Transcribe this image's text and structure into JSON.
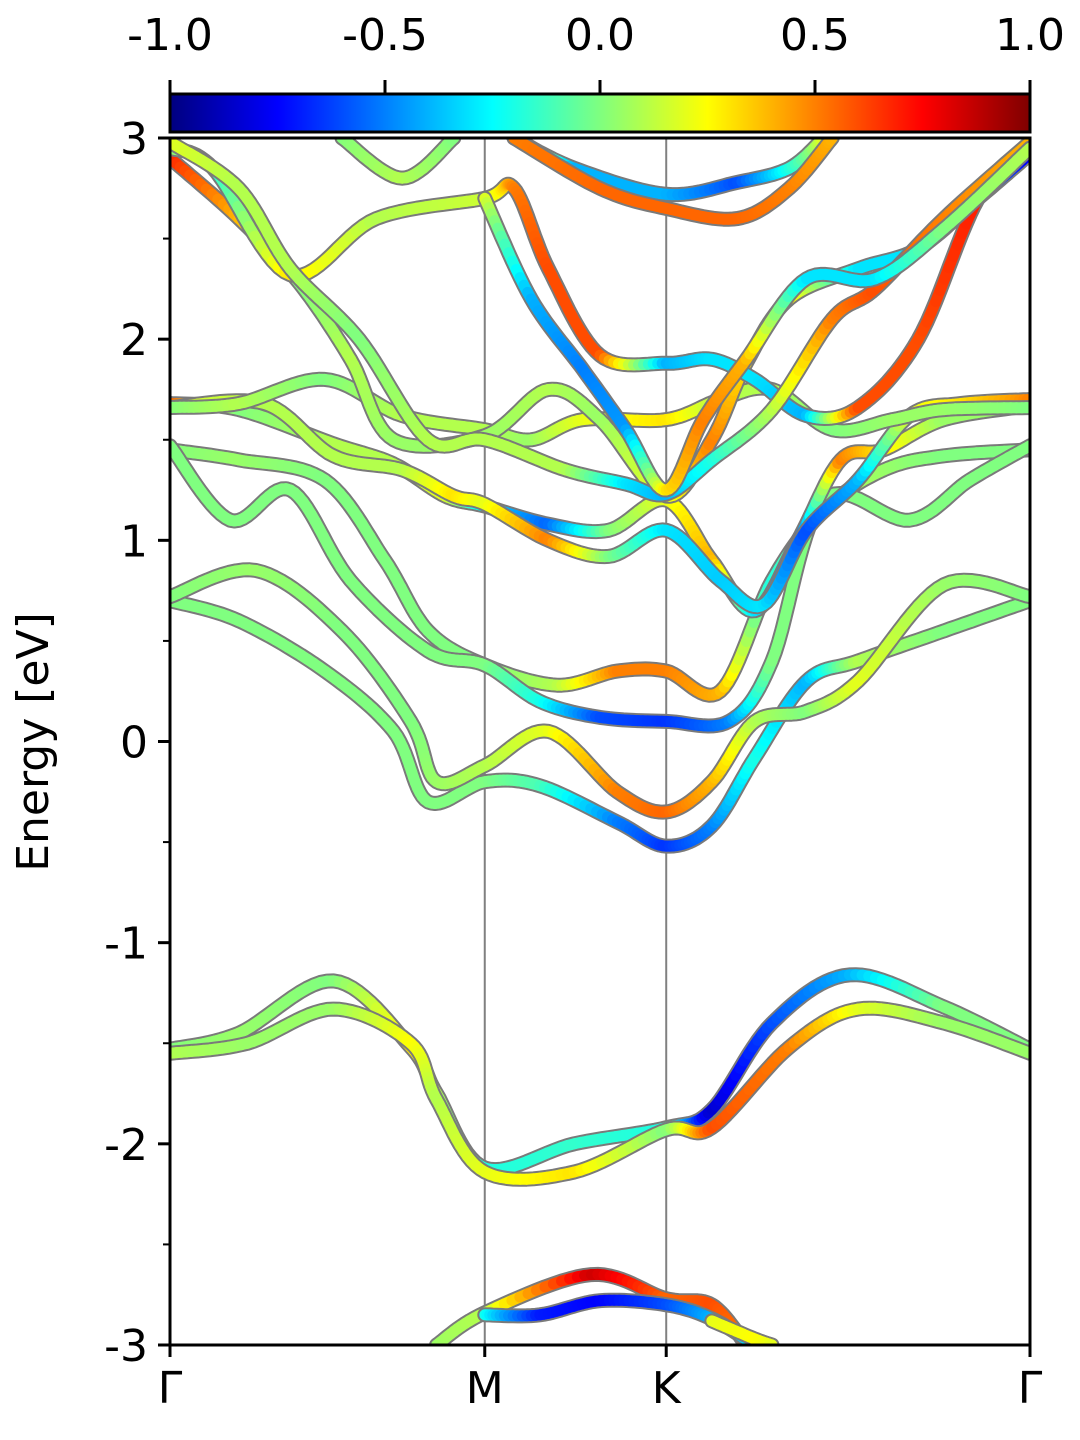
{
  "chart_data": {
    "type": "line",
    "ylabel": "Energy [eV]",
    "xlabel": "",
    "ylim": [
      -3,
      3
    ],
    "yticks": [
      "3",
      "2",
      "1",
      "0",
      "-1",
      "-2",
      "-3"
    ],
    "ytick_values": [
      3,
      2,
      1,
      0,
      -1,
      -2,
      -3
    ],
    "xlim": [
      0,
      1
    ],
    "kpoints": [
      {
        "label": "Γ",
        "x": 0.0
      },
      {
        "label": "M",
        "x": 0.366
      },
      {
        "label": "K",
        "x": 0.577
      },
      {
        "label": "Γ",
        "x": 1.0
      }
    ],
    "colorbar": {
      "colormap": "jet",
      "range": [
        -1.0,
        1.0
      ],
      "ticks": [
        "-1.0",
        "-0.5",
        "0.0",
        "0.5",
        "1.0"
      ],
      "tick_values": [
        -1.0,
        -0.5,
        0.0,
        0.5,
        1.0
      ],
      "placement": "top"
    },
    "vertical_lines_color": "#808080",
    "bands": [
      {
        "name": "b1",
        "points": [
          [
            0,
            -1.53,
            0
          ],
          [
            0.08,
            -1.45,
            0.05
          ],
          [
            0.19,
            -1.19,
            0.0
          ],
          [
            0.28,
            -1.52,
            0.3
          ],
          [
            0.31,
            -1.75,
            0.1
          ],
          [
            0.366,
            -2.12,
            -0.2
          ],
          [
            0.47,
            -2.0,
            -0.15
          ],
          [
            0.577,
            -1.92,
            -0.2
          ],
          [
            0.63,
            -1.83,
            -0.85
          ],
          [
            0.7,
            -1.4,
            -0.6
          ],
          [
            0.79,
            -1.16,
            -0.4
          ],
          [
            0.9,
            -1.32,
            0.0
          ],
          [
            1.0,
            -1.53,
            0.0
          ]
        ]
      },
      {
        "name": "b2",
        "points": [
          [
            0,
            -1.55,
            0.1
          ],
          [
            0.09,
            -1.5,
            0.05
          ],
          [
            0.19,
            -1.33,
            0.05
          ],
          [
            0.28,
            -1.5,
            0.25
          ],
          [
            0.31,
            -1.78,
            0.1
          ],
          [
            0.366,
            -2.14,
            0.2
          ],
          [
            0.47,
            -2.14,
            0.3
          ],
          [
            0.577,
            -1.93,
            0.0
          ],
          [
            0.63,
            -1.92,
            0.6
          ],
          [
            0.72,
            -1.52,
            0.5
          ],
          [
            0.8,
            -1.33,
            0.2
          ],
          [
            0.9,
            -1.4,
            0.05
          ],
          [
            1.0,
            -1.55,
            0.05
          ]
        ]
      },
      {
        "name": "b3",
        "points": [
          [
            0.31,
            -3.0,
            0.05
          ],
          [
            0.366,
            -2.84,
            0.1
          ],
          [
            0.49,
            -2.65,
            0.85
          ],
          [
            0.577,
            -2.77,
            0.55
          ],
          [
            0.63,
            -2.8,
            0.6
          ],
          [
            0.67,
            -3.0,
            0.5
          ]
        ]
      },
      {
        "name": "b4",
        "points": [
          [
            0.366,
            -2.85,
            -0.2
          ],
          [
            0.43,
            -2.85,
            -0.7
          ],
          [
            0.5,
            -2.78,
            -0.75
          ],
          [
            0.577,
            -2.8,
            -0.6
          ],
          [
            0.63,
            -2.87,
            -0.4
          ],
          [
            0.68,
            -3.0,
            -0.3
          ]
        ]
      },
      {
        "name": "b5",
        "points": [
          [
            0.63,
            -2.88,
            0.2
          ],
          [
            0.68,
            -2.97,
            0.25
          ],
          [
            0.7,
            -3.0,
            0.2
          ]
        ]
      },
      {
        "name": "b6",
        "points": [
          [
            0,
            0.7,
            0
          ],
          [
            0.08,
            0.6,
            0.0
          ],
          [
            0.18,
            0.35,
            0.0
          ],
          [
            0.26,
            0.05,
            0.0
          ],
          [
            0.3,
            -0.3,
            0.0
          ],
          [
            0.366,
            -0.2,
            0.0
          ],
          [
            0.43,
            -0.22,
            -0.1
          ],
          [
            0.52,
            -0.4,
            -0.5
          ],
          [
            0.577,
            -0.52,
            -0.65
          ],
          [
            0.63,
            -0.42,
            -0.5
          ],
          [
            0.68,
            -0.08,
            -0.2
          ],
          [
            0.74,
            0.3,
            -0.4
          ],
          [
            0.8,
            0.4,
            0.1
          ],
          [
            0.9,
            0.55,
            0.0
          ],
          [
            1.0,
            0.7,
            0.0
          ]
        ]
      },
      {
        "name": "b7",
        "points": [
          [
            0,
            0.72,
            0
          ],
          [
            0.1,
            0.85,
            0.05
          ],
          [
            0.2,
            0.55,
            0.0
          ],
          [
            0.28,
            0.1,
            0.0
          ],
          [
            0.31,
            -0.2,
            0.05
          ],
          [
            0.366,
            -0.12,
            0.1
          ],
          [
            0.44,
            0.05,
            0.2
          ],
          [
            0.52,
            -0.25,
            0.5
          ],
          [
            0.577,
            -0.35,
            0.55
          ],
          [
            0.63,
            -0.2,
            0.4
          ],
          [
            0.68,
            0.1,
            0.1
          ],
          [
            0.74,
            0.15,
            0.0
          ],
          [
            0.8,
            0.3,
            0.2
          ],
          [
            0.9,
            0.78,
            0.05
          ],
          [
            1.0,
            0.72,
            0.0
          ]
        ]
      },
      {
        "name": "b8",
        "points": [
          [
            0,
            1.45,
            0
          ],
          [
            0.08,
            1.4,
            0.05
          ],
          [
            0.18,
            1.3,
            0.0
          ],
          [
            0.25,
            0.9,
            0.0
          ],
          [
            0.3,
            0.55,
            0.0
          ],
          [
            0.366,
            0.38,
            0.0
          ],
          [
            0.45,
            0.28,
            0.1
          ],
          [
            0.52,
            0.35,
            0.5
          ],
          [
            0.577,
            0.35,
            0.5
          ],
          [
            0.64,
            0.25,
            0.4
          ],
          [
            0.7,
            0.8,
            -0.2
          ],
          [
            0.76,
            1.15,
            0.1
          ],
          [
            0.83,
            1.35,
            0.05
          ],
          [
            0.9,
            1.42,
            0.0
          ],
          [
            1.0,
            1.45,
            0.0
          ]
        ]
      },
      {
        "name": "b9",
        "points": [
          [
            0,
            1.47,
            0
          ],
          [
            0.07,
            1.1,
            0.0
          ],
          [
            0.14,
            1.25,
            0.0
          ],
          [
            0.21,
            0.8,
            0.0
          ],
          [
            0.3,
            0.45,
            0.0
          ],
          [
            0.366,
            0.38,
            0.0
          ],
          [
            0.43,
            0.2,
            -0.2
          ],
          [
            0.5,
            0.12,
            -0.6
          ],
          [
            0.577,
            0.1,
            -0.65
          ],
          [
            0.65,
            0.1,
            -0.5
          ],
          [
            0.7,
            0.4,
            0.0
          ],
          [
            0.76,
            1.2,
            0.0
          ],
          [
            0.86,
            1.1,
            0.0
          ],
          [
            0.93,
            1.3,
            0.0
          ],
          [
            1.0,
            1.47,
            0.0
          ]
        ]
      },
      {
        "name": "b10",
        "points": [
          [
            0,
            1.68,
            0.6
          ],
          [
            0.08,
            1.65,
            0.0
          ],
          [
            0.19,
            1.48,
            0.1
          ],
          [
            0.26,
            1.38,
            0.1
          ],
          [
            0.32,
            1.22,
            0.2
          ],
          [
            0.366,
            1.17,
            -0.3
          ],
          [
            0.44,
            1.08,
            -0.55
          ],
          [
            0.51,
            1.05,
            0.0
          ],
          [
            0.577,
            1.2,
            0.2
          ],
          [
            0.63,
            0.9,
            0.4
          ],
          [
            0.68,
            0.65,
            -0.3
          ],
          [
            0.73,
            1.0,
            -0.6
          ],
          [
            0.78,
            1.4,
            0.5
          ],
          [
            0.83,
            1.45,
            0.3
          ],
          [
            0.9,
            1.6,
            0.05
          ],
          [
            1.0,
            1.67,
            0.05
          ]
        ]
      },
      {
        "name": "b11",
        "points": [
          [
            0,
            1.66,
            0.2
          ],
          [
            0.11,
            1.68,
            0.1
          ],
          [
            0.19,
            1.42,
            0.1
          ],
          [
            0.27,
            1.35,
            0.1
          ],
          [
            0.33,
            1.22,
            0.3
          ],
          [
            0.366,
            1.18,
            0.2
          ],
          [
            0.44,
            1.0,
            0.5
          ],
          [
            0.51,
            0.92,
            0.0
          ],
          [
            0.577,
            1.05,
            -0.3
          ],
          [
            0.64,
            0.8,
            -0.35
          ],
          [
            0.69,
            0.68,
            -0.3
          ],
          [
            0.74,
            1.05,
            -0.6
          ],
          [
            0.8,
            1.3,
            -0.4
          ],
          [
            0.86,
            1.62,
            0.2
          ],
          [
            0.92,
            1.68,
            0.3
          ],
          [
            1.0,
            1.7,
            0.5
          ]
        ]
      },
      {
        "name": "b12",
        "points": [
          [
            0,
            1.66,
            0
          ],
          [
            0.08,
            1.68,
            0.1
          ],
          [
            0.18,
            1.8,
            0.0
          ],
          [
            0.27,
            1.62,
            0.1
          ],
          [
            0.366,
            1.55,
            0.1
          ],
          [
            0.42,
            1.5,
            0.05
          ],
          [
            0.48,
            1.6,
            0.2
          ],
          [
            0.577,
            1.6,
            0.3
          ],
          [
            0.64,
            1.7,
            0.1
          ],
          [
            0.7,
            1.75,
            0.1
          ],
          [
            0.77,
            1.55,
            0.0
          ],
          [
            0.84,
            1.6,
            0.05
          ],
          [
            0.9,
            1.65,
            0.05
          ],
          [
            1.0,
            1.66,
            0.0
          ]
        ]
      },
      {
        "name": "b13",
        "points": [
          [
            0,
            2.9,
            0.7
          ],
          [
            0.08,
            2.6,
            0.4
          ],
          [
            0.15,
            2.28,
            0.0
          ],
          [
            0.21,
            1.9,
            0.1
          ],
          [
            0.26,
            1.5,
            0.05
          ],
          [
            0.366,
            1.52,
            0.05
          ],
          [
            0.44,
            1.75,
            0.1
          ],
          [
            0.5,
            1.6,
            0.05
          ],
          [
            0.577,
            1.22,
            0.2
          ],
          [
            0.63,
            1.5,
            0.5
          ],
          [
            0.67,
            1.88,
            0.3
          ],
          [
            0.72,
            2.2,
            0.3
          ],
          [
            0.8,
            2.35,
            -0.3
          ],
          [
            0.87,
            2.45,
            -0.3
          ],
          [
            0.94,
            2.7,
            -0.5
          ],
          [
            1.0,
            2.92,
            -0.8
          ]
        ]
      },
      {
        "name": "b14",
        "points": [
          [
            0,
            2.95,
            0.1
          ],
          [
            0.05,
            2.85,
            -0.2
          ],
          [
            0.14,
            2.32,
            0.3
          ],
          [
            0.24,
            2.6,
            0.1
          ],
          [
            0.366,
            2.7,
            0.15
          ],
          [
            0.4,
            2.75,
            0.5
          ],
          [
            0.44,
            2.35,
            0.6
          ],
          [
            0.5,
            1.92,
            0.6
          ],
          [
            0.577,
            1.88,
            -0.4
          ],
          [
            0.63,
            1.9,
            -0.3
          ],
          [
            0.68,
            1.8,
            -0.3
          ],
          [
            0.74,
            1.62,
            -0.4
          ],
          [
            0.8,
            1.66,
            0.6
          ],
          [
            0.87,
            2.0,
            0.6
          ],
          [
            0.94,
            2.7,
            0.7
          ],
          [
            1.0,
            2.95,
            0.8
          ]
        ]
      },
      {
        "name": "b15",
        "points": [
          [
            0,
            2.98,
            0.2
          ],
          [
            0.08,
            2.75,
            0.1
          ],
          [
            0.14,
            2.35,
            0.1
          ],
          [
            0.22,
            2.0,
            0.0
          ],
          [
            0.3,
            1.5,
            0.1
          ],
          [
            0.366,
            1.5,
            0.1
          ],
          [
            0.46,
            1.35,
            0.1
          ],
          [
            0.53,
            1.28,
            -0.3
          ],
          [
            0.577,
            1.23,
            -0.4
          ],
          [
            0.63,
            1.4,
            -0.2
          ],
          [
            0.7,
            1.65,
            0.1
          ],
          [
            0.77,
            2.1,
            0.5
          ],
          [
            0.82,
            2.25,
            0.6
          ],
          [
            0.9,
            2.6,
            0.5
          ],
          [
            1.0,
            2.98,
            0.4
          ]
        ]
      },
      {
        "name": "b16",
        "points": [
          [
            0.366,
            2.7,
            0.2
          ],
          [
            0.42,
            2.2,
            -0.4
          ],
          [
            0.48,
            1.85,
            -0.5
          ],
          [
            0.53,
            1.55,
            -0.45
          ],
          [
            0.577,
            1.25,
            0.3
          ],
          [
            0.62,
            1.6,
            0.5
          ],
          [
            0.67,
            1.9,
            0.4
          ],
          [
            0.74,
            2.3,
            -0.3
          ],
          [
            0.82,
            2.3,
            -0.3
          ],
          [
            0.9,
            2.55,
            0.0
          ],
          [
            1.0,
            2.95,
            0.1
          ]
        ]
      },
      {
        "name": "b17",
        "points": [
          [
            0.2,
            3.0,
            0.0
          ],
          [
            0.27,
            2.8,
            0.1
          ],
          [
            0.33,
            3.0,
            0.0
          ]
        ]
      },
      {
        "name": "b18",
        "points": [
          [
            0.4,
            3.0,
            0.5
          ],
          [
            0.47,
            2.85,
            -0.4
          ],
          [
            0.577,
            2.72,
            -0.4
          ],
          [
            0.66,
            2.78,
            -0.6
          ],
          [
            0.72,
            2.85,
            -0.2
          ],
          [
            0.76,
            3.0,
            0.2
          ]
        ]
      },
      {
        "name": "b19",
        "points": [
          [
            0.4,
            3.0,
            0.5
          ],
          [
            0.5,
            2.75,
            0.55
          ],
          [
            0.577,
            2.65,
            0.55
          ],
          [
            0.66,
            2.6,
            0.55
          ],
          [
            0.72,
            2.75,
            0.5
          ],
          [
            0.77,
            3.0,
            0.4
          ]
        ]
      }
    ]
  }
}
